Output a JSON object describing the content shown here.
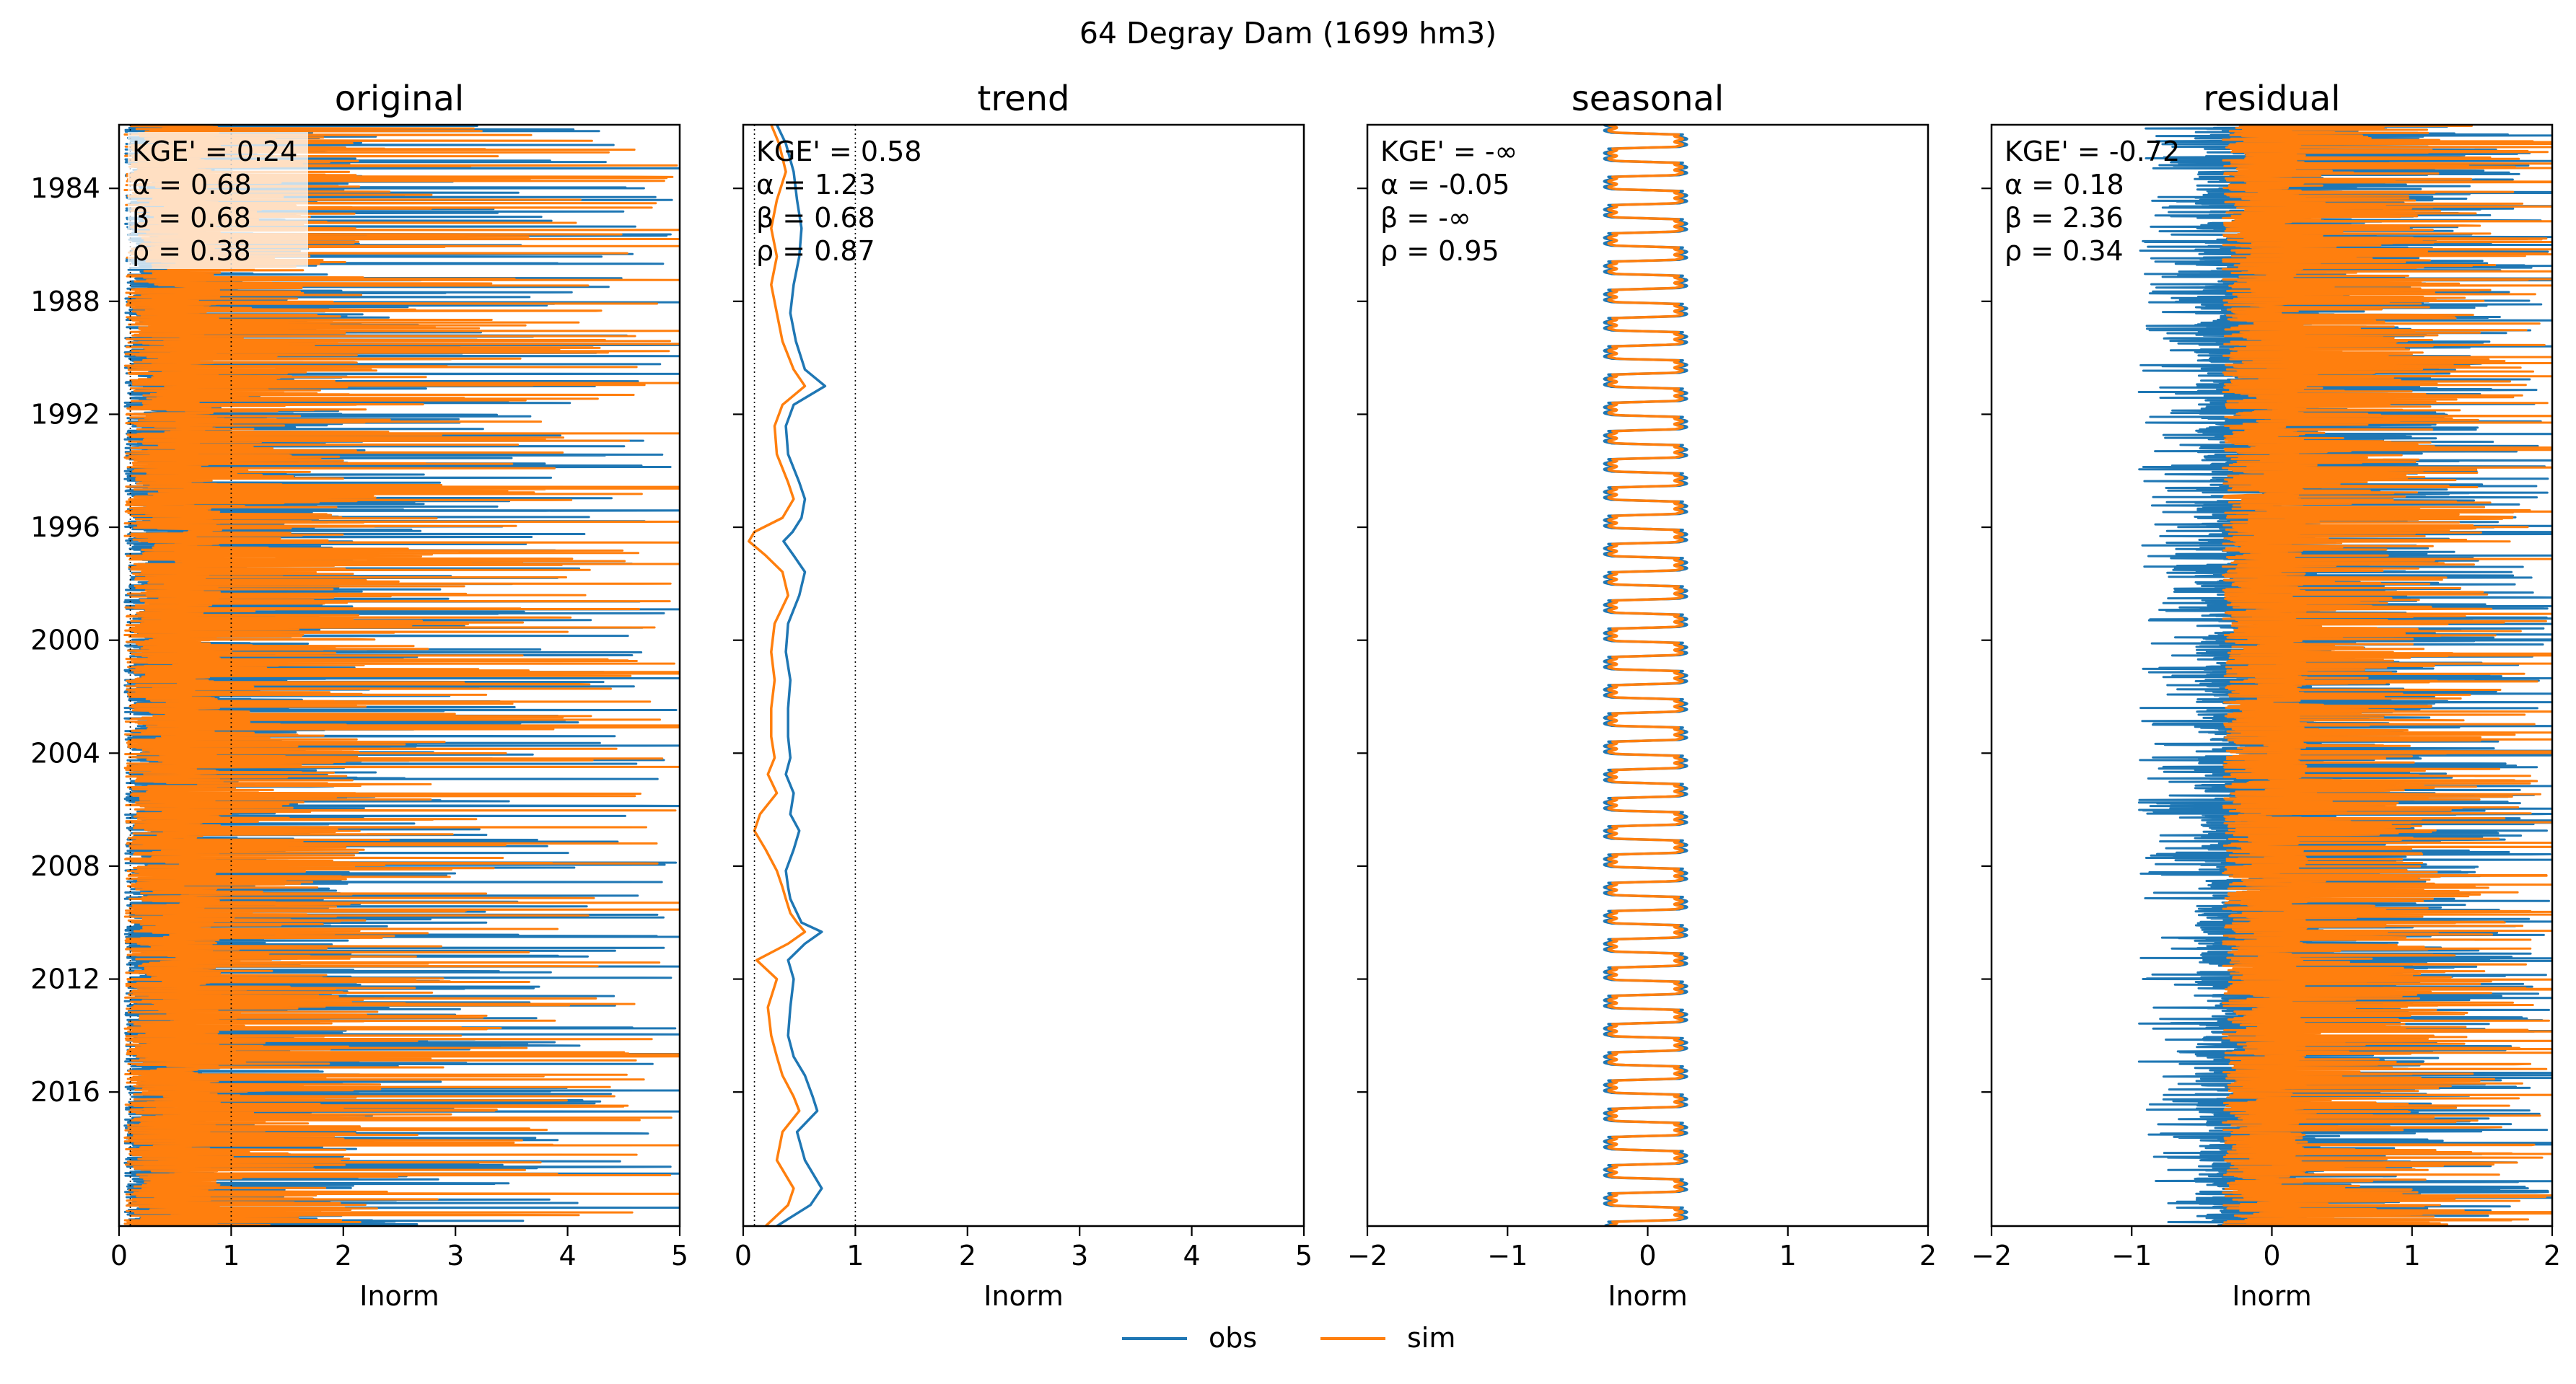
{
  "figure": {
    "suptitle": "64  Degray Dam (1699 hm3)"
  },
  "legend": {
    "items": [
      {
        "label": "obs",
        "color": "#1f77b4"
      },
      {
        "label": "sim",
        "color": "#ff7f0e"
      }
    ]
  },
  "chart_data": [
    {
      "type": "line",
      "title": "original",
      "xlabel": "Inorm",
      "ylabel": "",
      "xlim": [
        0,
        5
      ],
      "xticks": [
        "0",
        "1",
        "2",
        "3",
        "4",
        "5"
      ],
      "xtick_values": [
        0,
        1,
        2,
        3,
        4,
        5
      ],
      "ylim": [
        "1981-10-01",
        "2020-09-30"
      ],
      "yticks": [
        "1984",
        "1988",
        "1992",
        "1996",
        "2000",
        "2004",
        "2008",
        "2012",
        "2016"
      ],
      "reference_lines_x": [
        0.1,
        1
      ],
      "stats": [
        "KGE' = 0.24",
        "α = 0.68",
        "β = 0.68",
        "ρ = 0.38"
      ],
      "series": [
        {
          "name": "obs",
          "color": "#1f77b4",
          "description": "daily normalized inflow, mostly 0–1 with frequent spikes up to 5"
        },
        {
          "name": "sim",
          "color": "#ff7f0e",
          "description": "daily normalized inflow, mostly 0–1 with spikes up to about 4.6"
        }
      ]
    },
    {
      "type": "line",
      "title": "trend",
      "xlabel": "Inorm",
      "ylabel": "",
      "xlim": [
        0,
        5
      ],
      "xticks": [
        "0",
        "1",
        "2",
        "3",
        "4",
        "5"
      ],
      "xtick_values": [
        0,
        1,
        2,
        3,
        4,
        5
      ],
      "ylim": [
        "1981-10-01",
        "2020-09-30"
      ],
      "yticks": [
        "1984",
        "1988",
        "1992",
        "1996",
        "2000",
        "2004",
        "2008",
        "2012",
        "2016"
      ],
      "reference_lines_x": [
        0.1,
        1
      ],
      "stats": [
        "KGE' = 0.58",
        "α = 1.23",
        "β = 0.68",
        "ρ = 0.87"
      ],
      "series": [
        {
          "name": "obs",
          "color": "#1f77b4",
          "x": [
            0.3,
            0.38,
            0.45,
            0.48,
            0.52,
            0.5,
            0.45,
            0.42,
            0.47,
            0.55,
            0.73,
            0.45,
            0.38,
            0.4,
            0.5,
            0.55,
            0.52,
            0.44,
            0.36,
            0.45,
            0.55,
            0.5,
            0.4,
            0.38,
            0.42,
            0.4,
            0.4,
            0.42,
            0.38,
            0.45,
            0.42,
            0.5,
            0.45,
            0.38,
            0.4,
            0.42,
            0.48,
            0.52,
            0.7,
            0.55,
            0.4,
            0.45,
            0.42,
            0.4,
            0.45,
            0.55,
            0.62,
            0.66,
            0.48,
            0.55,
            0.7,
            0.6,
            0.3
          ],
          "y": [
            "1981-10-01",
            "1982-06-01",
            "1983-06-01",
            "1984-06-01",
            "1985-06-01",
            "1986-06-01",
            "1987-06-01",
            "1988-06-01",
            "1989-06-01",
            "1990-06-01",
            "1991-01-01",
            "1991-09-01",
            "1992-06-01",
            "1993-06-01",
            "1994-06-01",
            "1995-01-01",
            "1995-09-01",
            "1996-03-01",
            "1996-07-01",
            "1997-01-01",
            "1997-08-01",
            "1998-06-01",
            "1999-06-01",
            "2000-06-01",
            "2001-06-01",
            "2002-06-01",
            "2003-06-01",
            "2004-03-01",
            "2004-10-01",
            "2005-06-01",
            "2006-03-01",
            "2006-10-01",
            "2007-06-01",
            "2008-03-01",
            "2008-10-01",
            "2009-03-01",
            "2009-09-01",
            "2010-01-01",
            "2010-05-01",
            "2010-10-01",
            "2011-05-01",
            "2012-01-01",
            "2013-01-01",
            "2014-01-01",
            "2014-10-01",
            "2015-06-01",
            "2016-03-01",
            "2016-09-01",
            "2017-06-01",
            "2018-06-01",
            "2019-06-01",
            "2020-01-01",
            "2020-09-30"
          ]
        },
        {
          "name": "sim",
          "color": "#ff7f0e",
          "x": [
            0.25,
            0.32,
            0.38,
            0.3,
            0.25,
            0.3,
            0.25,
            0.3,
            0.35,
            0.45,
            0.55,
            0.35,
            0.28,
            0.3,
            0.4,
            0.45,
            0.35,
            0.1,
            0.05,
            0.2,
            0.35,
            0.4,
            0.28,
            0.25,
            0.28,
            0.25,
            0.25,
            0.28,
            0.22,
            0.3,
            0.15,
            0.1,
            0.2,
            0.3,
            0.35,
            0.38,
            0.42,
            0.48,
            0.55,
            0.4,
            0.12,
            0.3,
            0.22,
            0.25,
            0.3,
            0.35,
            0.45,
            0.5,
            0.35,
            0.3,
            0.45,
            0.4,
            0.2
          ],
          "y": [
            "1981-10-01",
            "1982-06-01",
            "1983-06-01",
            "1984-06-01",
            "1985-06-01",
            "1986-06-01",
            "1987-06-01",
            "1988-06-01",
            "1989-06-01",
            "1990-06-01",
            "1991-01-01",
            "1991-09-01",
            "1992-06-01",
            "1993-06-01",
            "1994-06-01",
            "1995-01-01",
            "1995-09-01",
            "1996-03-01",
            "1996-07-01",
            "1997-01-01",
            "1997-08-01",
            "1998-06-01",
            "1999-06-01",
            "2000-06-01",
            "2001-06-01",
            "2002-06-01",
            "2003-06-01",
            "2004-03-01",
            "2004-10-01",
            "2005-06-01",
            "2006-03-01",
            "2006-10-01",
            "2007-06-01",
            "2008-03-01",
            "2008-10-01",
            "2009-03-01",
            "2009-09-01",
            "2010-01-01",
            "2010-05-01",
            "2010-10-01",
            "2011-05-01",
            "2012-01-01",
            "2013-01-01",
            "2014-01-01",
            "2014-10-01",
            "2015-06-01",
            "2016-03-01",
            "2016-09-01",
            "2017-06-01",
            "2018-06-01",
            "2019-06-01",
            "2020-01-01",
            "2020-09-30"
          ]
        }
      ]
    },
    {
      "type": "line",
      "title": "seasonal",
      "xlabel": "Inorm",
      "ylabel": "",
      "xlim": [
        -2,
        2
      ],
      "xticks": [
        "−2",
        "−1",
        "0",
        "1",
        "2"
      ],
      "xtick_values": [
        -2,
        -1,
        0,
        1,
        2
      ],
      "ylim": [
        "1981-10-01",
        "2020-09-30"
      ],
      "yticks": [
        "1984",
        "1988",
        "1992",
        "1996",
        "2000",
        "2004",
        "2008",
        "2012",
        "2016"
      ],
      "stats": [
        "KGE' = -∞",
        "α = -0.05",
        "β = -∞",
        "ρ = 0.95"
      ],
      "series": [
        {
          "name": "obs",
          "color": "#1f77b4",
          "pattern": "annual cycle repeated every year",
          "amplitude_range": [
            -0.28,
            0.25
          ]
        },
        {
          "name": "sim",
          "color": "#ff7f0e",
          "pattern": "annual cycle repeated every year",
          "amplitude_range": [
            -0.25,
            0.22
          ]
        }
      ]
    },
    {
      "type": "line",
      "title": "residual",
      "xlabel": "Inorm",
      "ylabel": "",
      "xlim": [
        -2,
        2
      ],
      "xticks": [
        "−2",
        "−1",
        "0",
        "1",
        "2"
      ],
      "xtick_values": [
        -2,
        -1,
        0,
        1,
        2
      ],
      "ylim": [
        "1981-10-01",
        "2020-09-30"
      ],
      "yticks": [
        "1984",
        "1988",
        "1992",
        "1996",
        "2000",
        "2004",
        "2008",
        "2012",
        "2016"
      ],
      "stats": [
        "KGE' = -0.72",
        "α = 0.18",
        "β = 2.36",
        "ρ = 0.34"
      ],
      "series": [
        {
          "name": "obs",
          "color": "#1f77b4",
          "description": "daily residual, spread about −0.9 to 2 with spikes clipped at 2"
        },
        {
          "name": "sim",
          "color": "#ff7f0e",
          "description": "daily residual, concentrated near 0 with spikes clipped at 2"
        }
      ]
    }
  ]
}
